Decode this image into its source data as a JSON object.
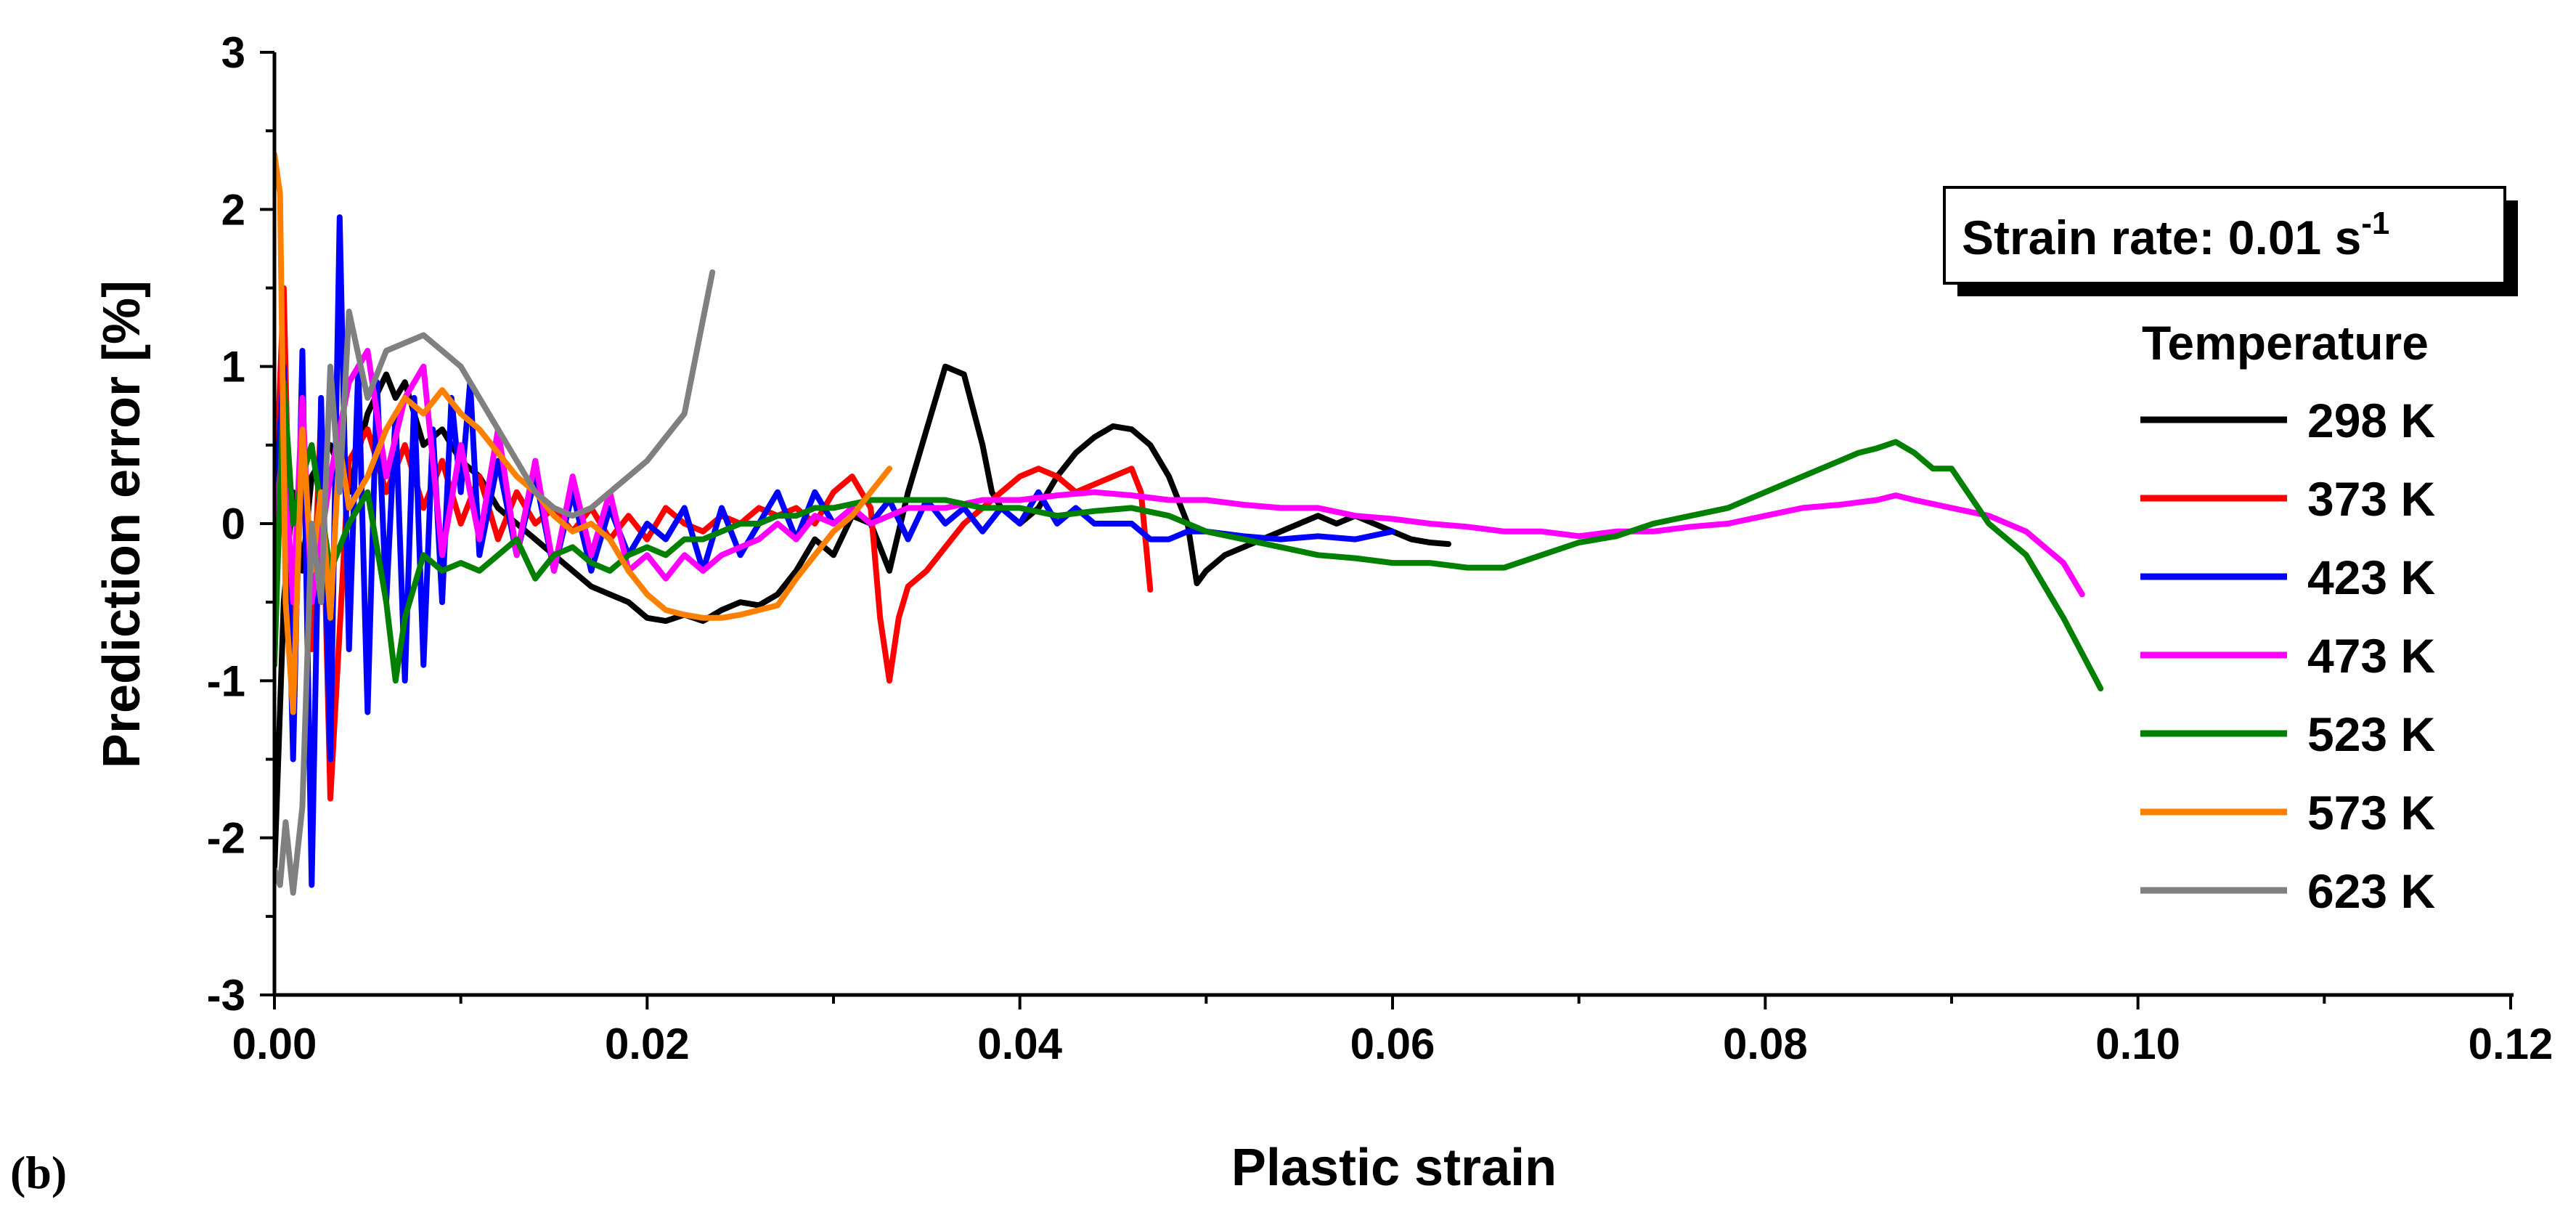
{
  "panel_label": "(b)",
  "colors": {
    "axis": "#000000",
    "background": "#ffffff"
  },
  "chart_data": {
    "type": "line",
    "xlabel": "Plastic strain",
    "ylabel": "Prediction error [%]",
    "xlim": [
      0,
      0.12
    ],
    "ylim": [
      -3,
      3
    ],
    "x_ticks": [
      "0.00",
      "0.02",
      "0.04",
      "0.06",
      "0.08",
      "0.10",
      "0.12"
    ],
    "y_ticks": [
      "-3",
      "-2",
      "-1",
      "0",
      "1",
      "2",
      "3"
    ],
    "grid": false,
    "annotation": {
      "text": "Strain rate: 0.01 s",
      "superscript": "-1"
    },
    "legend": {
      "title": "Temperature",
      "position": "right"
    },
    "series": [
      {
        "name": "298 K",
        "color": "#000000",
        "x": [
          0.0,
          0.0005,
          0.001,
          0.0015,
          0.002,
          0.003,
          0.004,
          0.005,
          0.006,
          0.0065,
          0.007,
          0.008,
          0.009,
          0.01,
          0.011,
          0.012,
          0.013,
          0.014,
          0.015,
          0.016,
          0.017,
          0.018,
          0.019,
          0.02,
          0.021,
          0.022,
          0.023,
          0.024,
          0.025,
          0.026,
          0.027,
          0.028,
          0.029,
          0.03,
          0.031,
          0.032,
          0.033,
          0.034,
          0.035,
          0.036,
          0.037,
          0.038,
          0.0385,
          0.039,
          0.04,
          0.041,
          0.042,
          0.043,
          0.044,
          0.045,
          0.046,
          0.047,
          0.048,
          0.049,
          0.0495,
          0.05,
          0.051,
          0.052,
          0.053,
          0.054,
          0.055,
          0.056,
          0.057,
          0.058,
          0.059,
          0.06,
          0.061,
          0.062,
          0.063
        ],
        "y": [
          -2.2,
          -0.5,
          0.2,
          -0.3,
          0.3,
          0.5,
          0.2,
          0.7,
          0.95,
          0.8,
          0.9,
          0.5,
          0.6,
          0.4,
          0.3,
          0.1,
          0.0,
          -0.1,
          -0.2,
          -0.3,
          -0.4,
          -0.45,
          -0.5,
          -0.6,
          -0.62,
          -0.58,
          -0.62,
          -0.55,
          -0.5,
          -0.52,
          -0.45,
          -0.3,
          -0.1,
          -0.2,
          0.05,
          0.0,
          -0.3,
          0.2,
          0.6,
          1.0,
          0.95,
          0.5,
          0.2,
          0.1,
          0.0,
          0.1,
          0.3,
          0.45,
          0.55,
          0.62,
          0.6,
          0.5,
          0.3,
          0.0,
          -0.38,
          -0.3,
          -0.2,
          -0.15,
          -0.1,
          -0.05,
          0.0,
          0.05,
          0.0,
          0.05,
          0.0,
          -0.05,
          -0.1,
          -0.12,
          -0.13
        ]
      },
      {
        "name": "373 K",
        "color": "#ff0000",
        "x": [
          0.0,
          0.0005,
          0.001,
          0.0015,
          0.002,
          0.0025,
          0.003,
          0.004,
          0.005,
          0.006,
          0.007,
          0.008,
          0.009,
          0.01,
          0.011,
          0.012,
          0.013,
          0.014,
          0.015,
          0.016,
          0.017,
          0.018,
          0.019,
          0.02,
          0.021,
          0.022,
          0.023,
          0.024,
          0.025,
          0.026,
          0.027,
          0.028,
          0.029,
          0.03,
          0.031,
          0.032,
          0.0325,
          0.033,
          0.0335,
          0.034,
          0.035,
          0.036,
          0.037,
          0.038,
          0.039,
          0.04,
          0.041,
          0.042,
          0.043,
          0.044,
          0.045,
          0.046,
          0.0465,
          0.047
        ],
        "y": [
          0.0,
          1.5,
          -1.2,
          0.6,
          -0.8,
          0.7,
          -1.75,
          0.4,
          0.6,
          0.2,
          0.5,
          0.1,
          0.4,
          0.0,
          0.3,
          -0.1,
          0.2,
          0.0,
          0.1,
          -0.05,
          0.1,
          -0.1,
          0.05,
          -0.1,
          0.1,
          0.0,
          -0.05,
          0.05,
          0.0,
          0.1,
          0.05,
          0.1,
          0.0,
          0.2,
          0.3,
          0.1,
          -0.6,
          -1.0,
          -0.6,
          -0.4,
          -0.3,
          -0.15,
          0.0,
          0.1,
          0.2,
          0.3,
          0.35,
          0.3,
          0.2,
          0.25,
          0.3,
          0.35,
          0.2,
          -0.42
        ]
      },
      {
        "name": "423 K",
        "color": "#0000ff",
        "x": [
          0.0,
          0.0005,
          0.001,
          0.0015,
          0.002,
          0.0025,
          0.003,
          0.0035,
          0.004,
          0.0045,
          0.005,
          0.0055,
          0.006,
          0.0065,
          0.007,
          0.0075,
          0.008,
          0.0085,
          0.009,
          0.0095,
          0.01,
          0.0105,
          0.011,
          0.012,
          0.013,
          0.014,
          0.015,
          0.016,
          0.017,
          0.018,
          0.019,
          0.02,
          0.021,
          0.022,
          0.023,
          0.024,
          0.025,
          0.026,
          0.027,
          0.028,
          0.029,
          0.03,
          0.031,
          0.032,
          0.033,
          0.034,
          0.035,
          0.036,
          0.037,
          0.038,
          0.039,
          0.04,
          0.041,
          0.042,
          0.043,
          0.044,
          0.045,
          0.046,
          0.047,
          0.048,
          0.049,
          0.05,
          0.052,
          0.054,
          0.056,
          0.058,
          0.06
        ],
        "y": [
          0.0,
          1.0,
          -1.5,
          1.1,
          -2.3,
          0.8,
          -1.5,
          1.95,
          -0.8,
          1.0,
          -1.2,
          0.9,
          -0.5,
          0.7,
          -1.0,
          0.8,
          -0.9,
          0.6,
          -0.5,
          0.8,
          0.2,
          0.9,
          -0.2,
          0.4,
          -0.2,
          0.3,
          -0.3,
          0.2,
          -0.3,
          0.1,
          -0.2,
          0.0,
          -0.1,
          0.1,
          -0.3,
          0.1,
          -0.2,
          0.0,
          0.2,
          -0.1,
          0.2,
          0.0,
          0.1,
          0.0,
          0.15,
          -0.1,
          0.15,
          0.0,
          0.1,
          -0.05,
          0.1,
          0.0,
          0.2,
          0.0,
          0.1,
          0.0,
          0.0,
          0.0,
          -0.1,
          -0.1,
          -0.05,
          -0.05,
          -0.08,
          -0.1,
          -0.08,
          -0.1,
          -0.05
        ]
      },
      {
        "name": "473 K",
        "color": "#ff00ff",
        "x": [
          0.0,
          0.0005,
          0.001,
          0.0015,
          0.002,
          0.003,
          0.004,
          0.005,
          0.006,
          0.007,
          0.008,
          0.009,
          0.01,
          0.011,
          0.012,
          0.013,
          0.014,
          0.015,
          0.016,
          0.017,
          0.018,
          0.019,
          0.02,
          0.021,
          0.022,
          0.023,
          0.024,
          0.025,
          0.026,
          0.027,
          0.028,
          0.029,
          0.03,
          0.031,
          0.032,
          0.034,
          0.036,
          0.038,
          0.04,
          0.042,
          0.044,
          0.046,
          0.048,
          0.05,
          0.052,
          0.054,
          0.056,
          0.058,
          0.06,
          0.062,
          0.064,
          0.066,
          0.068,
          0.07,
          0.072,
          0.074,
          0.076,
          0.078,
          0.08,
          0.082,
          0.084,
          0.086,
          0.087,
          0.088,
          0.09,
          0.092,
          0.094,
          0.096,
          0.097
        ],
        "y": [
          0.0,
          0.5,
          -0.5,
          0.8,
          -0.5,
          0.3,
          0.9,
          1.1,
          0.3,
          0.8,
          1.0,
          -0.2,
          0.5,
          -0.1,
          0.6,
          -0.2,
          0.4,
          -0.3,
          0.3,
          -0.2,
          0.2,
          -0.3,
          -0.2,
          -0.35,
          -0.2,
          -0.3,
          -0.2,
          -0.15,
          -0.1,
          0.0,
          -0.1,
          0.05,
          0.0,
          0.1,
          0.0,
          0.1,
          0.1,
          0.15,
          0.15,
          0.18,
          0.2,
          0.18,
          0.15,
          0.15,
          0.12,
          0.1,
          0.1,
          0.05,
          0.03,
          0.0,
          -0.02,
          -0.05,
          -0.05,
          -0.08,
          -0.05,
          -0.05,
          -0.02,
          0.0,
          0.05,
          0.1,
          0.12,
          0.15,
          0.18,
          0.15,
          0.1,
          0.05,
          -0.05,
          -0.25,
          -0.45
        ]
      },
      {
        "name": "523 K",
        "color": "#008000",
        "x": [
          0.0,
          0.0005,
          0.001,
          0.0015,
          0.002,
          0.003,
          0.004,
          0.005,
          0.006,
          0.0065,
          0.007,
          0.008,
          0.009,
          0.01,
          0.011,
          0.012,
          0.013,
          0.014,
          0.015,
          0.016,
          0.017,
          0.018,
          0.019,
          0.02,
          0.021,
          0.022,
          0.023,
          0.024,
          0.025,
          0.026,
          0.027,
          0.028,
          0.029,
          0.03,
          0.032,
          0.034,
          0.036,
          0.038,
          0.04,
          0.042,
          0.044,
          0.046,
          0.048,
          0.05,
          0.052,
          0.054,
          0.056,
          0.058,
          0.06,
          0.062,
          0.064,
          0.066,
          0.068,
          0.07,
          0.072,
          0.074,
          0.076,
          0.078,
          0.08,
          0.082,
          0.084,
          0.085,
          0.086,
          0.087,
          0.088,
          0.089,
          0.09,
          0.092,
          0.094,
          0.096,
          0.098
        ],
        "y": [
          -0.9,
          0.9,
          0.0,
          0.3,
          0.5,
          -0.3,
          0.0,
          0.2,
          -0.5,
          -1.0,
          -0.6,
          -0.2,
          -0.3,
          -0.25,
          -0.3,
          -0.2,
          -0.1,
          -0.35,
          -0.2,
          -0.15,
          -0.25,
          -0.3,
          -0.2,
          -0.15,
          -0.2,
          -0.1,
          -0.1,
          -0.05,
          0.0,
          0.0,
          0.05,
          0.05,
          0.1,
          0.1,
          0.15,
          0.15,
          0.15,
          0.1,
          0.1,
          0.05,
          0.08,
          0.1,
          0.05,
          -0.05,
          -0.1,
          -0.15,
          -0.2,
          -0.22,
          -0.25,
          -0.25,
          -0.28,
          -0.28,
          -0.2,
          -0.12,
          -0.08,
          0.0,
          0.05,
          0.1,
          0.2,
          0.3,
          0.4,
          0.45,
          0.48,
          0.52,
          0.45,
          0.35,
          0.35,
          0.0,
          -0.2,
          -0.6,
          -1.05
        ]
      },
      {
        "name": "573 K",
        "color": "#ff8000",
        "x": [
          0.0,
          0.0003,
          0.0006,
          0.001,
          0.0015,
          0.002,
          0.0025,
          0.003,
          0.0035,
          0.004,
          0.005,
          0.006,
          0.007,
          0.008,
          0.009,
          0.01,
          0.011,
          0.012,
          0.013,
          0.014,
          0.015,
          0.016,
          0.017,
          0.018,
          0.019,
          0.02,
          0.021,
          0.022,
          0.023,
          0.024,
          0.025,
          0.026,
          0.027,
          0.028,
          0.029,
          0.03,
          0.031,
          0.032,
          0.033
        ],
        "y": [
          2.35,
          2.1,
          -0.5,
          -1.2,
          0.6,
          -0.3,
          0.2,
          -0.6,
          0.5,
          0.1,
          0.3,
          0.6,
          0.8,
          0.7,
          0.85,
          0.7,
          0.6,
          0.45,
          0.3,
          0.2,
          0.05,
          -0.05,
          0.0,
          -0.1,
          -0.3,
          -0.45,
          -0.55,
          -0.58,
          -0.6,
          -0.6,
          -0.58,
          -0.55,
          -0.52,
          -0.35,
          -0.2,
          -0.05,
          0.05,
          0.2,
          0.35
        ]
      },
      {
        "name": "623 K",
        "color": "#808080",
        "x": [
          0.0,
          0.0003,
          0.0006,
          0.001,
          0.0015,
          0.002,
          0.0025,
          0.003,
          0.0035,
          0.004,
          0.005,
          0.006,
          0.007,
          0.008,
          0.009,
          0.01,
          0.011,
          0.012,
          0.013,
          0.014,
          0.015,
          0.016,
          0.017,
          0.018,
          0.019,
          0.02,
          0.021,
          0.022,
          0.0225,
          0.023,
          0.0235
        ],
        "y": [
          -2.2,
          -2.3,
          -1.9,
          -2.35,
          -1.8,
          0.0,
          -0.5,
          1.0,
          0.2,
          1.35,
          0.8,
          1.1,
          1.15,
          1.2,
          1.1,
          1.0,
          0.8,
          0.6,
          0.4,
          0.2,
          0.1,
          0.05,
          0.1,
          0.2,
          0.3,
          0.4,
          0.55,
          0.7,
          1.0,
          1.3,
          1.6
        ]
      }
    ]
  }
}
